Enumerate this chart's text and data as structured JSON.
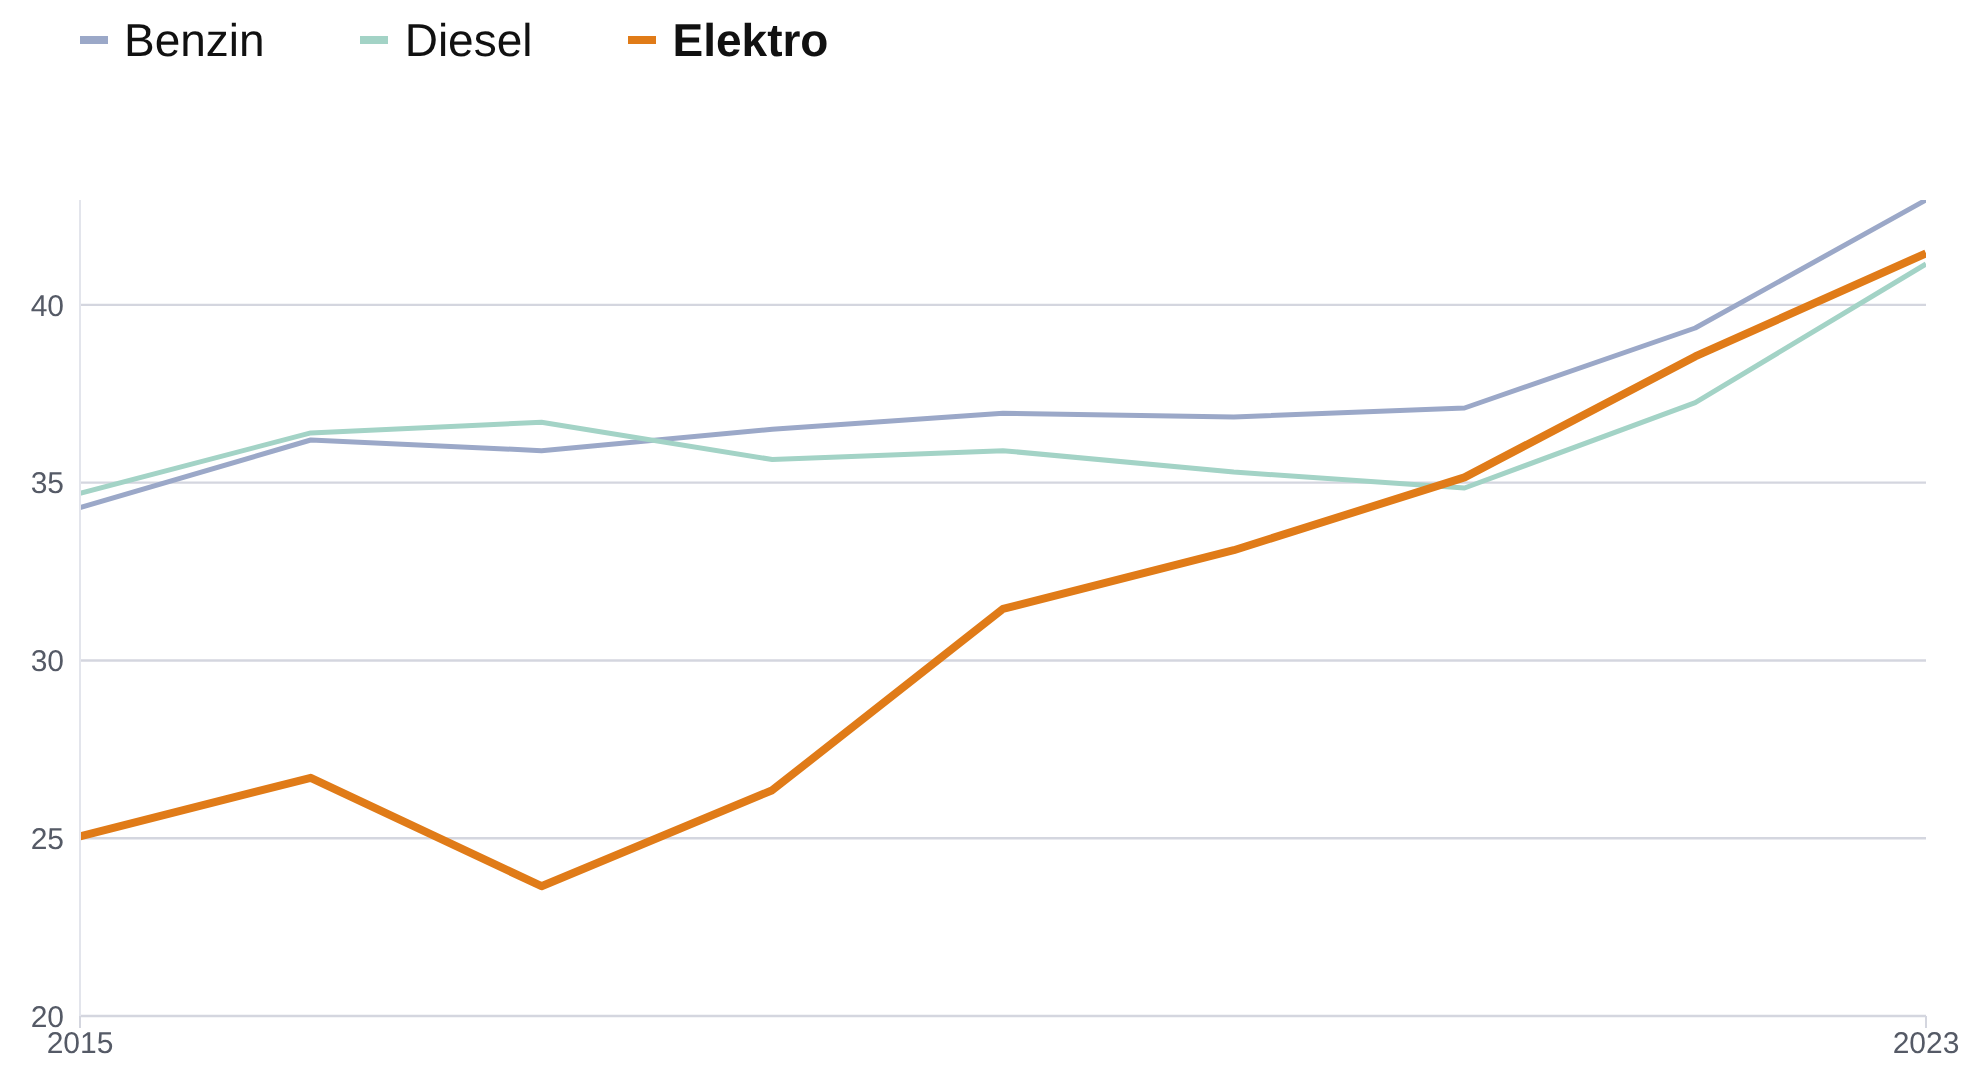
{
  "chart_data": {
    "type": "line",
    "x": [
      2015,
      2016,
      2017,
      2018,
      2019,
      2020,
      2021,
      2022,
      2023
    ],
    "series": [
      {
        "name": "Benzin",
        "color": "#9ba8c8",
        "values": [
          34.3,
          36.2,
          35.9,
          36.5,
          36.95,
          36.85,
          37.1,
          39.35,
          42.95
        ]
      },
      {
        "name": "Diesel",
        "color": "#a3d3c6",
        "values": [
          34.7,
          36.4,
          36.7,
          35.65,
          35.9,
          35.3,
          34.85,
          37.25,
          41.15
        ]
      },
      {
        "name": "Elektro",
        "color": "#e07b18",
        "values": [
          25.05,
          26.7,
          23.65,
          26.35,
          31.45,
          33.1,
          35.15,
          38.55,
          41.45
        ]
      }
    ],
    "xlim": [
      2015,
      2023
    ],
    "xticks": [
      2015,
      2023
    ],
    "ylim": [
      20,
      42.95
    ],
    "yticks": [
      20,
      25,
      30,
      35,
      40
    ],
    "grid": "y",
    "legend": "top left",
    "marker": "none",
    "line_style": "solid"
  }
}
